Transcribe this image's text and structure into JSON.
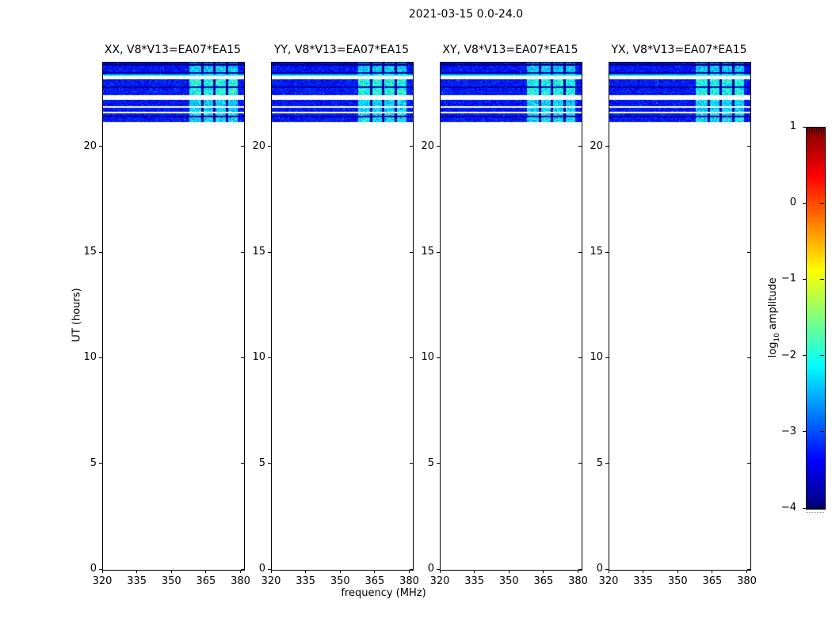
{
  "figure": {
    "title": "2021-03-15 0.0-24.0"
  },
  "chart_data": {
    "type": "heatmap",
    "title": "2021-03-15 0.0-24.0",
    "baseline": "V8*V13=EA07*EA15",
    "panels": [
      {
        "polarization": "XX",
        "title": "XX, V8*V13=EA07*EA15",
        "seed": 101
      },
      {
        "polarization": "YY",
        "title": "YY, V8*V13=EA07*EA15",
        "seed": 202
      },
      {
        "polarization": "XY",
        "title": "XY, V8*V13=EA07*EA15",
        "seed": 303
      },
      {
        "polarization": "YX",
        "title": "YX, V8*V13=EA07*EA15",
        "seed": 404
      }
    ],
    "xlabel": "frequency (MHz)",
    "ylabel": "UT (hours)",
    "xlim": [
      320,
      381.2
    ],
    "ylim": [
      0,
      24
    ],
    "x_ticks": [
      320,
      335,
      350,
      365,
      380
    ],
    "y_ticks": [
      0,
      5,
      10,
      15,
      20
    ],
    "colorbar": {
      "label": "log10 amplitude",
      "label_prefix": "log",
      "label_sub": "10",
      "label_suffix": " amplitude",
      "ticks": [
        1,
        0,
        -1,
        -2,
        -3,
        -4
      ],
      "vmin": -4,
      "vmax": 1,
      "colormap": "jet"
    },
    "observation": {
      "note": "data present only between ~21.2 and 24.0 UT hours; rest of day blank",
      "scans": [
        {
          "t0": 23.36,
          "t1": 24.0,
          "base_amp": -3.35,
          "patch_amp": -2.35,
          "dark_rows": [
            23.94,
            23.9,
            23.5
          ],
          "bright_rows": [
            [
              23.36,
              23.45
            ]
          ]
        },
        {
          "t0": 22.48,
          "t1": 23.22,
          "base_amp": -3.3,
          "patch_amp": -2.05,
          "dark_rows": [
            22.84
          ],
          "bright_rows": []
        },
        {
          "t0": 21.94,
          "t1": 22.24,
          "base_amp": -3.35,
          "patch_amp": -2.3,
          "dark_rows": [],
          "bright_rows": []
        },
        {
          "t0": 21.68,
          "t1": 21.87,
          "base_amp": -3.35,
          "patch_amp": -2.3,
          "dark_rows": [],
          "bright_rows": []
        },
        {
          "t0": 21.19,
          "t1": 21.6,
          "base_amp": -3.3,
          "patch_amp": -2.25,
          "dark_rows": [
            21.45
          ],
          "bright_rows": []
        }
      ],
      "rfi_band": {
        "f0": 357.5,
        "f1": 378.5,
        "separators": [
          [
            362.8,
            363.8
          ],
          [
            367.8,
            368.8
          ],
          [
            373.2,
            374.2
          ]
        ]
      },
      "noise_spread": 0.8,
      "patch_spread": 1.1
    }
  }
}
